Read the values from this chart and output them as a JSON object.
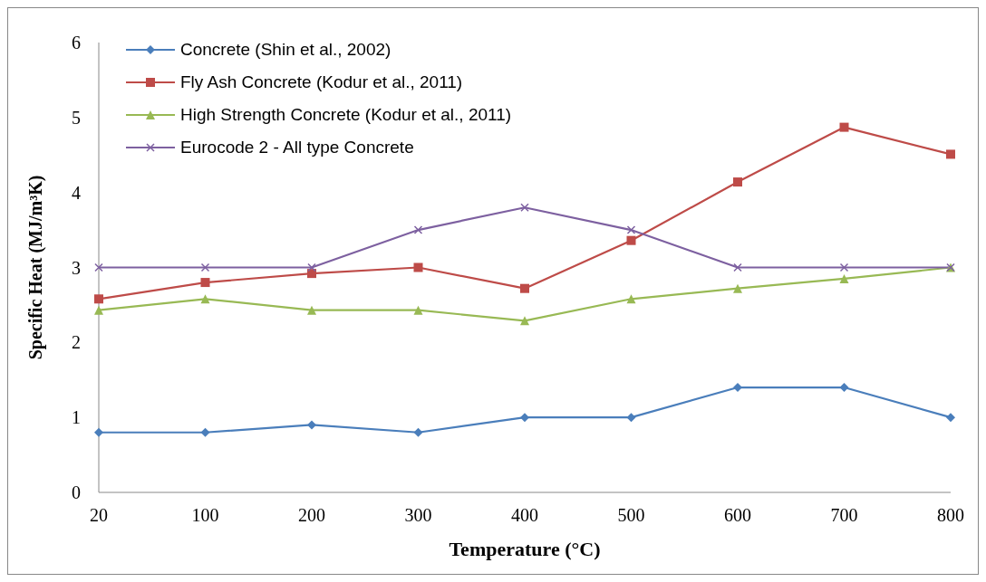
{
  "chart_data": {
    "type": "line",
    "xlabel": "Temperature (°C)",
    "ylabel": "Specific Heat (MJ/m³K)",
    "categories": [
      "20",
      "100",
      "200",
      "300",
      "400",
      "500",
      "600",
      "700",
      "800"
    ],
    "ylim": [
      0,
      6
    ],
    "yticks": [
      0,
      1,
      2,
      3,
      4,
      5,
      6
    ],
    "grid": false,
    "legend": "top left",
    "series": [
      {
        "name": "Concrete (Shin et al., 2002)",
        "color": "#4a7ebb",
        "marker": "diamond",
        "values": [
          0.8,
          0.8,
          0.9,
          0.8,
          1.0,
          1.0,
          1.4,
          1.4,
          1.0
        ]
      },
      {
        "name": "Fly Ash Concrete (Kodur et al., 2011)",
        "color": "#be4b48",
        "marker": "square",
        "values": [
          2.58,
          2.8,
          2.92,
          3.0,
          2.72,
          3.36,
          4.14,
          4.87,
          4.51
        ]
      },
      {
        "name": "High Strength Concrete (Kodur et al., 2011)",
        "color": "#98b954",
        "marker": "triangle",
        "values": [
          2.43,
          2.58,
          2.43,
          2.43,
          2.29,
          2.58,
          2.72,
          2.85,
          3.0
        ]
      },
      {
        "name": "Eurocode 2 - All type Concrete",
        "color": "#7d60a0",
        "marker": "cross",
        "values": [
          3.0,
          3.0,
          3.0,
          3.5,
          3.8,
          3.5,
          3.0,
          3.0,
          3.0
        ]
      }
    ]
  }
}
